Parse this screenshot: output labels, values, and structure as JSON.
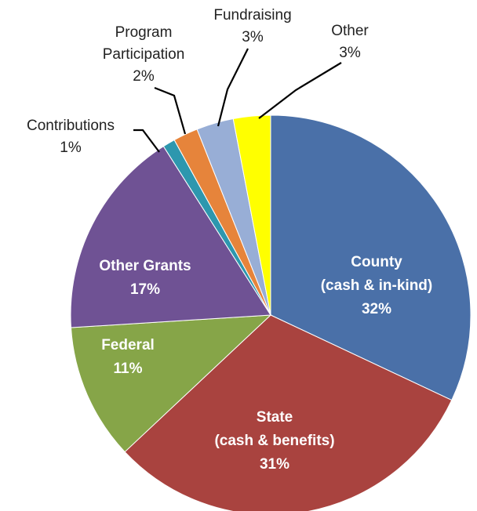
{
  "chart_data": {
    "type": "pie",
    "title": "",
    "slices": [
      {
        "label_lines": [
          "County",
          "(cash & in-kind)",
          "32%"
        ],
        "value": 32,
        "color": "#4A70A8",
        "label_position": "inside"
      },
      {
        "label_lines": [
          "State",
          "(cash & benefits)",
          "31%"
        ],
        "value": 31,
        "color": "#A9433F",
        "label_position": "inside"
      },
      {
        "label_lines": [
          "Federal",
          "11%"
        ],
        "value": 11,
        "color": "#86A548",
        "label_position": "inside"
      },
      {
        "label_lines": [
          "Other Grants",
          "17%"
        ],
        "value": 17,
        "color": "#6F5294",
        "label_position": "inside"
      },
      {
        "label_lines": [
          "Contributions",
          "1%"
        ],
        "value": 1,
        "color": "#2D97AE",
        "label_position": "outside"
      },
      {
        "label_lines": [
          "Program",
          "Participation",
          "2%"
        ],
        "value": 2,
        "color": "#E6843B",
        "label_position": "outside"
      },
      {
        "label_lines": [
          "Fundraising",
          "3%"
        ],
        "value": 3,
        "color": "#98AED6",
        "label_position": "outside"
      },
      {
        "label_lines": [
          "Other",
          "3%"
        ],
        "value": 3,
        "color": "#FFFF00",
        "label_position": "outside"
      }
    ],
    "start_angle_deg": 0,
    "direction": "clockwise"
  }
}
